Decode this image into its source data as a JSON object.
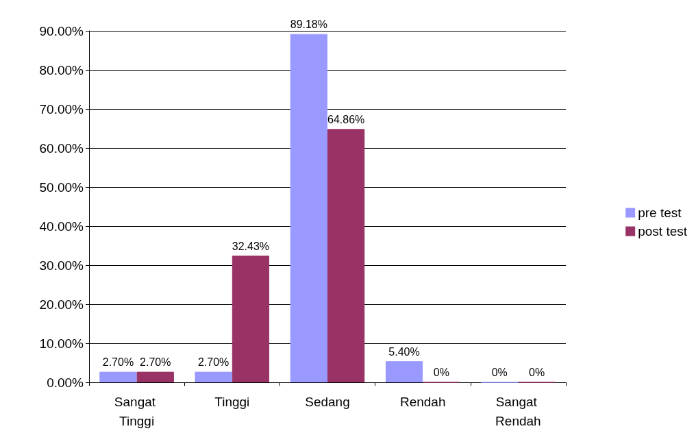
{
  "chart_data": {
    "type": "bar",
    "categories": [
      "Sangat Tinggi",
      "Tinggi",
      "Sedang",
      "Rendah",
      "Sangat Rendah"
    ],
    "series": [
      {
        "name": "pre test",
        "color": "#9999ff",
        "values": [
          2.7,
          2.7,
          89.18,
          5.4,
          0
        ],
        "value_labels": [
          "2.70%",
          "2.70%",
          "89.18%",
          "5.40%",
          "0%"
        ]
      },
      {
        "name": "post test",
        "color": "#993366",
        "values": [
          2.7,
          32.43,
          64.86,
          0,
          0
        ],
        "value_labels": [
          "2.70%",
          "32.43%",
          "64.86%",
          "0%",
          "0%"
        ]
      }
    ],
    "ylim": [
      0,
      90
    ],
    "yticks": [
      {
        "value": 0,
        "label": "0.00%"
      },
      {
        "value": 10,
        "label": "10.00%"
      },
      {
        "value": 20,
        "label": "20.00%"
      },
      {
        "value": 30,
        "label": "30.00%"
      },
      {
        "value": 40,
        "label": "40.00%"
      },
      {
        "value": 50,
        "label": "50.00%"
      },
      {
        "value": 60,
        "label": "60.00%"
      },
      {
        "value": 70,
        "label": "70.00%"
      },
      {
        "value": 80,
        "label": "80.00%"
      },
      {
        "value": 90,
        "label": "90.00%"
      }
    ],
    "grid": "y",
    "legend": "right"
  }
}
